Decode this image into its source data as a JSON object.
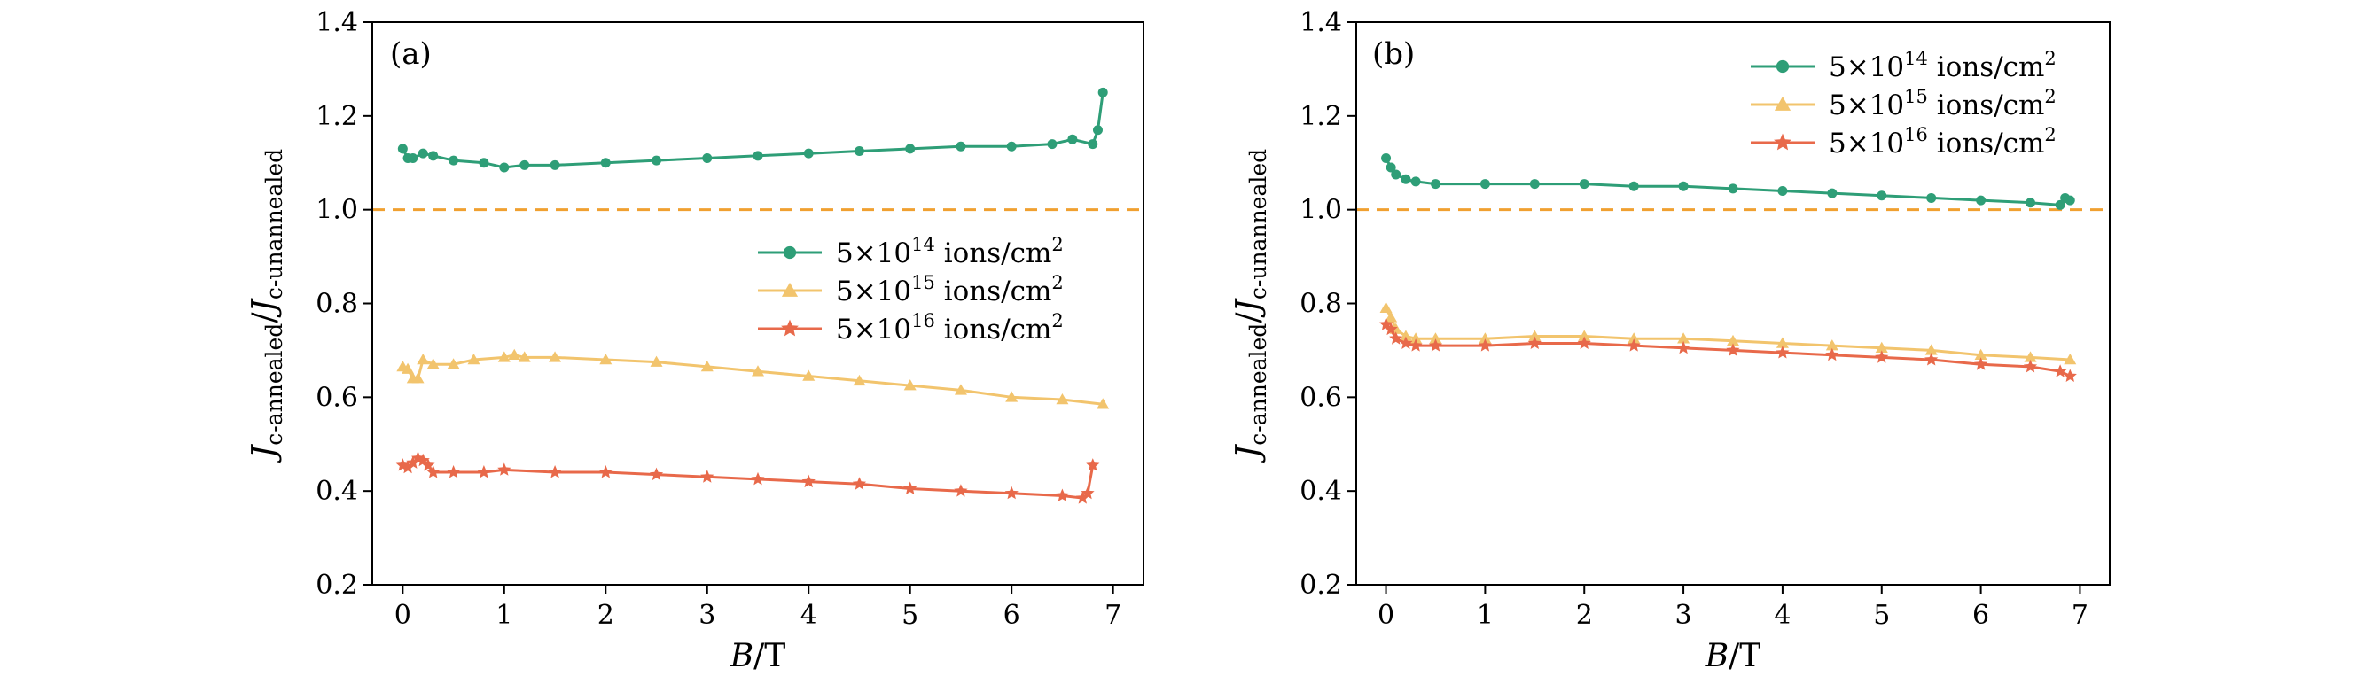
{
  "colors": {
    "green": "#2e9e77",
    "yellow": "#f2c46d",
    "red": "#e8694a",
    "reference": "#f0a030"
  },
  "chart_data": [
    {
      "type": "line",
      "panel_label": "(a)",
      "xlabel": {
        "main": "B",
        "unit": "/T"
      },
      "ylabel": {
        "j1": "J",
        "sub1": "c-annealed",
        "slash": "/",
        "j2": "J",
        "sub2": "c-unannealed"
      },
      "xlim": [
        -0.3,
        7.3
      ],
      "ylim": [
        0.2,
        1.4
      ],
      "xticks": [
        0,
        1,
        2,
        3,
        4,
        5,
        6,
        7
      ],
      "yticks": [
        0.2,
        0.4,
        0.6,
        0.8,
        1.0,
        1.2,
        1.4
      ],
      "ytick_labels": [
        "0.2",
        "0.4",
        "0.6",
        "0.8",
        "1.0",
        "1.2",
        "1.4"
      ],
      "reference_line": 1.0,
      "legend_position": "center-right",
      "series": [
        {
          "name": "5×10¹⁴ ions/cm²",
          "base": "5×10",
          "exp": "14",
          "unit": " ions/cm",
          "unit_exp": "2",
          "color": "#2e9e77",
          "marker": "circle",
          "x": [
            0,
            0.05,
            0.1,
            0.2,
            0.3,
            0.5,
            0.8,
            1.0,
            1.2,
            1.5,
            2.0,
            2.5,
            3.0,
            3.5,
            4.0,
            4.5,
            5.0,
            5.5,
            6.0,
            6.4,
            6.6,
            6.8,
            6.85,
            6.9
          ],
          "y": [
            1.13,
            1.11,
            1.11,
            1.12,
            1.115,
            1.105,
            1.1,
            1.09,
            1.095,
            1.095,
            1.1,
            1.105,
            1.11,
            1.115,
            1.12,
            1.125,
            1.13,
            1.135,
            1.135,
            1.14,
            1.15,
            1.14,
            1.17,
            1.25
          ]
        },
        {
          "name": "5×10¹⁵ ions/cm²",
          "base": "5×10",
          "exp": "15",
          "unit": " ions/cm",
          "unit_exp": "2",
          "color": "#f2c46d",
          "marker": "triangle",
          "x": [
            0,
            0.05,
            0.1,
            0.15,
            0.2,
            0.3,
            0.5,
            0.7,
            1.0,
            1.1,
            1.2,
            1.5,
            2.0,
            2.5,
            3.0,
            3.5,
            4.0,
            4.5,
            5.0,
            5.5,
            6.0,
            6.5,
            6.9
          ],
          "y": [
            0.665,
            0.66,
            0.64,
            0.64,
            0.68,
            0.67,
            0.67,
            0.68,
            0.685,
            0.69,
            0.685,
            0.685,
            0.68,
            0.675,
            0.665,
            0.655,
            0.645,
            0.635,
            0.625,
            0.615,
            0.6,
            0.595,
            0.585
          ]
        },
        {
          "name": "5×10¹⁶ ions/cm²",
          "base": "5×10",
          "exp": "16",
          "unit": " ions/cm",
          "unit_exp": "2",
          "color": "#e8694a",
          "marker": "star",
          "x": [
            0,
            0.05,
            0.1,
            0.15,
            0.2,
            0.25,
            0.3,
            0.5,
            0.8,
            1.0,
            1.5,
            2.0,
            2.5,
            3.0,
            3.5,
            4.0,
            4.5,
            5.0,
            5.5,
            6.0,
            6.5,
            6.7,
            6.75,
            6.8
          ],
          "y": [
            0.455,
            0.45,
            0.46,
            0.47,
            0.465,
            0.455,
            0.44,
            0.44,
            0.44,
            0.445,
            0.44,
            0.44,
            0.435,
            0.43,
            0.425,
            0.42,
            0.415,
            0.405,
            0.4,
            0.395,
            0.39,
            0.385,
            0.395,
            0.455
          ]
        }
      ]
    },
    {
      "type": "line",
      "panel_label": "(b)",
      "xlabel": {
        "main": "B",
        "unit": "/T"
      },
      "ylabel": {
        "j1": "J",
        "sub1": "c-annealed",
        "slash": "/",
        "j2": "J",
        "sub2": "c-unannealed"
      },
      "xlim": [
        -0.3,
        7.3
      ],
      "ylim": [
        0.2,
        1.4
      ],
      "xticks": [
        0,
        1,
        2,
        3,
        4,
        5,
        6,
        7
      ],
      "yticks": [
        0.2,
        0.4,
        0.6,
        0.8,
        1.0,
        1.2,
        1.4
      ],
      "ytick_labels": [
        "0.2",
        "0.4",
        "0.6",
        "0.8",
        "1.0",
        "1.2",
        "1.4"
      ],
      "reference_line": 1.0,
      "legend_position": "top-right",
      "series": [
        {
          "name": "5×10¹⁴ ions/cm²",
          "base": "5×10",
          "exp": "14",
          "unit": " ions/cm",
          "unit_exp": "2",
          "color": "#2e9e77",
          "marker": "circle",
          "x": [
            0,
            0.05,
            0.1,
            0.2,
            0.3,
            0.5,
            1.0,
            1.5,
            2.0,
            2.5,
            3.0,
            3.5,
            4.0,
            4.5,
            5.0,
            5.5,
            6.0,
            6.5,
            6.8,
            6.85,
            6.9
          ],
          "y": [
            1.11,
            1.09,
            1.075,
            1.065,
            1.06,
            1.055,
            1.055,
            1.055,
            1.055,
            1.05,
            1.05,
            1.045,
            1.04,
            1.035,
            1.03,
            1.025,
            1.02,
            1.015,
            1.01,
            1.025,
            1.02
          ]
        },
        {
          "name": "5×10¹⁵ ions/cm²",
          "base": "5×10",
          "exp": "15",
          "unit": " ions/cm",
          "unit_exp": "2",
          "color": "#f2c46d",
          "marker": "triangle",
          "x": [
            0,
            0.05,
            0.1,
            0.2,
            0.3,
            0.5,
            1.0,
            1.5,
            2.0,
            2.5,
            3.0,
            3.5,
            4.0,
            4.5,
            5.0,
            5.5,
            6.0,
            6.5,
            6.9
          ],
          "y": [
            0.79,
            0.77,
            0.745,
            0.73,
            0.725,
            0.725,
            0.725,
            0.73,
            0.73,
            0.725,
            0.725,
            0.72,
            0.715,
            0.71,
            0.705,
            0.7,
            0.69,
            0.685,
            0.68
          ]
        },
        {
          "name": "5×10¹⁶ ions/cm²",
          "base": "5×10",
          "exp": "16",
          "unit": " ions/cm",
          "unit_exp": "2",
          "color": "#e8694a",
          "marker": "star",
          "x": [
            0,
            0.05,
            0.1,
            0.2,
            0.3,
            0.5,
            1.0,
            1.5,
            2.0,
            2.5,
            3.0,
            3.5,
            4.0,
            4.5,
            5.0,
            5.5,
            6.0,
            6.5,
            6.8,
            6.9
          ],
          "y": [
            0.755,
            0.745,
            0.725,
            0.715,
            0.71,
            0.71,
            0.71,
            0.715,
            0.715,
            0.71,
            0.705,
            0.7,
            0.695,
            0.69,
            0.685,
            0.68,
            0.67,
            0.665,
            0.655,
            0.645
          ]
        }
      ]
    }
  ]
}
